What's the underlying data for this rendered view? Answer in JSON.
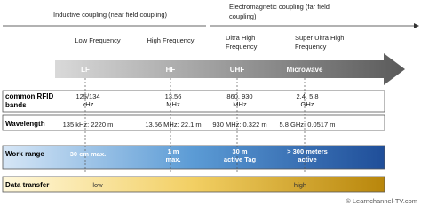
{
  "coupling": {
    "inductive": "Inductive coupling (near field coupling)",
    "electromagnetic": [
      "Electromagnetic coupling (far field",
      "coupling)"
    ]
  },
  "frequency_names": [
    [
      "Low Frequency"
    ],
    [
      "High Frequency"
    ],
    [
      "Ultra High",
      "Frequency"
    ],
    [
      "Super Ultra High",
      "Frequency"
    ]
  ],
  "bands": [
    "LF",
    "HF",
    "UHF",
    "Microwave"
  ],
  "rows": [
    {
      "label": [
        "common RFID",
        "bands"
      ],
      "cells": [
        [
          "125/134",
          "kHz"
        ],
        [
          "13.56",
          "MHz"
        ],
        [
          "860,  930",
          "MHz"
        ],
        [
          "2.4,   5.8",
          "GHz"
        ]
      ]
    },
    {
      "label": [
        "Wavelength"
      ],
      "cells": [
        [
          "135 kHz:  2220 m"
        ],
        [
          "13.56 MHz:  22.1 m"
        ],
        [
          "930 MHz:  0.322 m"
        ],
        [
          "5.8 GHz:  0.0517 m"
        ]
      ]
    },
    {
      "label": [
        "Work range"
      ],
      "cells": [
        [
          "30 cm max."
        ],
        [
          "1 m",
          "max."
        ],
        [
          "30 m",
          "active Tag"
        ],
        [
          "> 300 meters",
          "active"
        ]
      ]
    },
    {
      "label": [
        "Data transfer"
      ],
      "cells": [
        [
          "low"
        ],
        [],
        [],
        [
          "high"
        ]
      ]
    }
  ],
  "footer": "© Learnchannel-TV.com"
}
